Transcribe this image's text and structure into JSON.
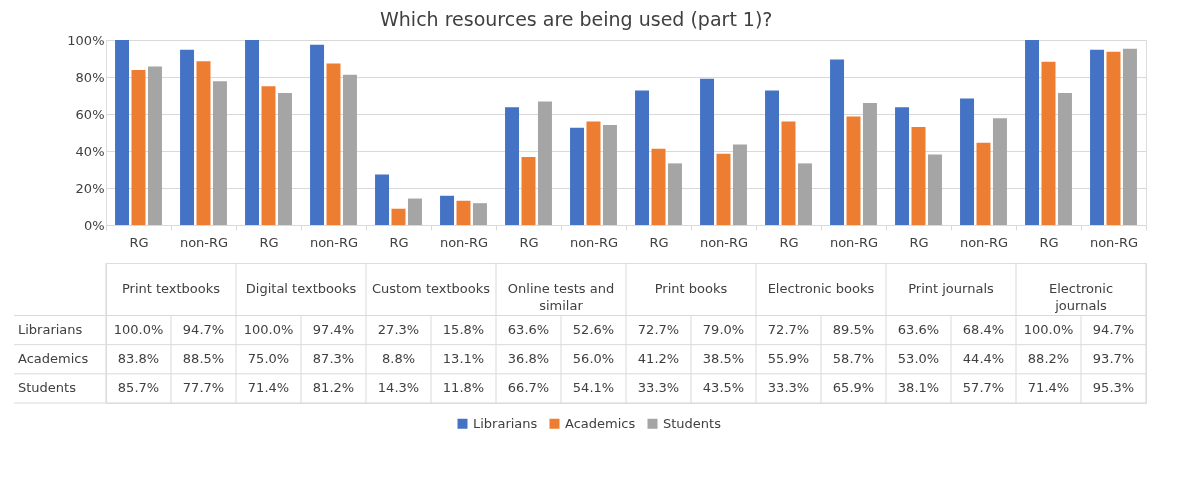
{
  "chart_data": {
    "type": "bar",
    "title": "Which resources are being used (part 1)?",
    "categories": [
      "RG",
      "non-RG",
      "RG",
      "non-RG",
      "RG",
      "non-RG",
      "RG",
      "non-RG",
      "RG",
      "non-RG",
      "RG",
      "non-RG",
      "RG",
      "non-RG",
      "RG",
      "non-RG"
    ],
    "annotations": [
      "Print textbooks",
      "Digital textbooks",
      "Custom textbooks",
      "Online tests and similar",
      "Print books",
      "Electronic books",
      "Print journals",
      "Electronic journals"
    ],
    "series": [
      {
        "name": "Librarians",
        "color": "#4472c4",
        "values": [
          100,
          94.7,
          100,
          97.4,
          27.3,
          15.8,
          63.6,
          52.6,
          72.7,
          79.0,
          72.7,
          89.5,
          63.6,
          68.4,
          100,
          94.7
        ],
        "value_labels": [
          "100.0%",
          "94.7%",
          "100.0%",
          "97.4%",
          "27.3%",
          "15.8%",
          "63.6%",
          "52.6%",
          "72.7%",
          "79.0%",
          "72.7%",
          "89.5%",
          "63.6%",
          "68.4%",
          "100.0%",
          "94.7%"
        ]
      },
      {
        "name": "Academics",
        "color": "#ed7d31",
        "values": [
          83.8,
          88.5,
          75.0,
          87.3,
          8.8,
          13.1,
          36.8,
          56.0,
          41.2,
          38.5,
          55.9,
          58.7,
          53.0,
          44.4,
          88.2,
          93.7
        ],
        "value_labels": [
          "83.8%",
          "88.5%",
          "75.0%",
          "87.3%",
          "8.8%",
          "13.1%",
          "36.8%",
          "56.0%",
          "41.2%",
          "38.5%",
          "55.9%",
          "58.7%",
          "53.0%",
          "44.4%",
          "88.2%",
          "93.7%"
        ]
      },
      {
        "name": "Students",
        "color": "#a5a5a5",
        "values": [
          85.7,
          77.7,
          71.4,
          81.2,
          14.3,
          11.8,
          66.7,
          54.1,
          33.3,
          43.5,
          33.3,
          65.9,
          38.1,
          57.7,
          71.4,
          95.3
        ],
        "value_labels": [
          "85.7%",
          "77.7%",
          "71.4%",
          "81.2%",
          "14.3%",
          "11.8%",
          "66.7%",
          "54.1%",
          "33.3%",
          "43.5%",
          "33.3%",
          "65.9%",
          "38.1%",
          "57.7%",
          "71.4%",
          "95.3%"
        ]
      }
    ],
    "ylim": [
      0,
      100
    ],
    "yticks": [
      {
        "value": 0,
        "label": "0%"
      },
      {
        "value": 20,
        "label": "20%"
      },
      {
        "value": 40,
        "label": "40%"
      },
      {
        "value": 60,
        "label": "60%"
      },
      {
        "value": 80,
        "label": "80%"
      },
      {
        "value": 100,
        "label": "100%"
      }
    ],
    "grid": "y",
    "legend": "bottom"
  }
}
